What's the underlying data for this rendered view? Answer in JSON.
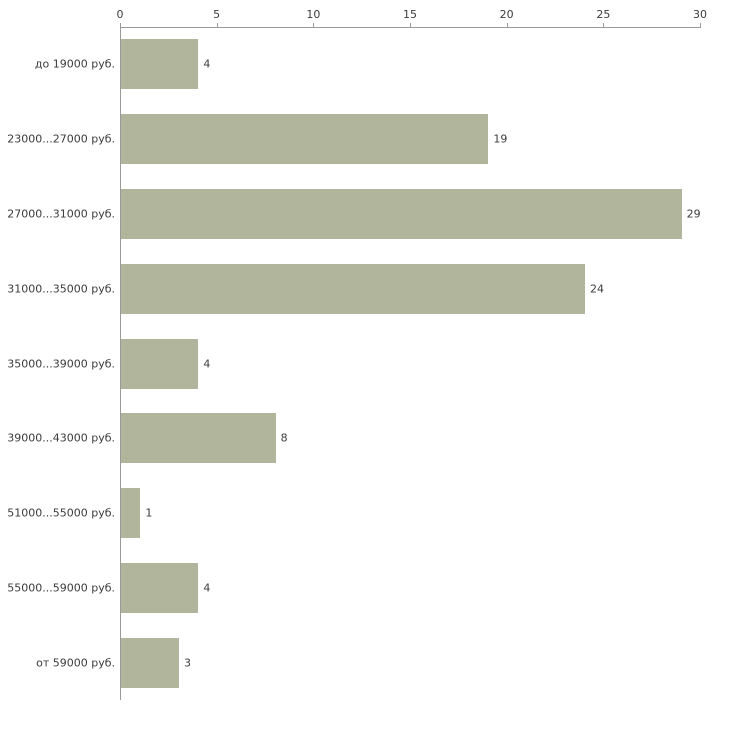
{
  "chart_data": {
    "type": "bar",
    "orientation": "horizontal",
    "title": "",
    "xlabel": "",
    "ylabel": "",
    "categories": [
      "до 19000 руб.",
      "23000...27000 руб.",
      "27000...31000 руб.",
      "31000...35000 руб.",
      "35000...39000 руб.",
      "39000...43000 руб.",
      "51000...55000 руб.",
      "55000...59000 руб.",
      "от 59000 руб."
    ],
    "values": [
      4,
      19,
      29,
      24,
      4,
      8,
      1,
      4,
      3
    ],
    "x_ticks": [
      0,
      5,
      10,
      15,
      20,
      25,
      30
    ],
    "xlim": [
      0,
      30
    ],
    "grid": false,
    "legend": false,
    "axis_position": "top-left",
    "bar_color": "#b1b59b",
    "axis_color": "#9a9a9a",
    "text_color": "#3c3c3c",
    "background_color": "#ffffff"
  }
}
